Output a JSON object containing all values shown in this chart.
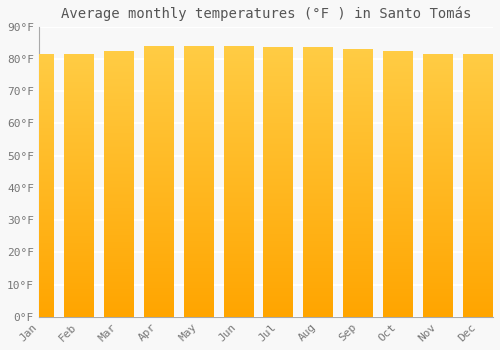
{
  "title": "Average monthly temperatures (°F ) in Santo Tomás",
  "months": [
    "Jan",
    "Feb",
    "Mar",
    "Apr",
    "May",
    "Jun",
    "Jul",
    "Aug",
    "Sep",
    "Oct",
    "Nov",
    "Dec"
  ],
  "values": [
    81.5,
    81.5,
    82.5,
    84.0,
    84.0,
    84.0,
    83.5,
    83.5,
    83.0,
    82.5,
    81.5,
    81.5
  ],
  "bar_color_light": "#FFCC44",
  "bar_color_dark": "#FFA500",
  "background_color": "#f8f8f8",
  "plot_bg_color": "#f8f8f8",
  "grid_color": "#ffffff",
  "ytick_labels": [
    "0°F",
    "10°F",
    "20°F",
    "30°F",
    "40°F",
    "50°F",
    "60°F",
    "70°F",
    "80°F",
    "90°F"
  ],
  "ytick_values": [
    0,
    10,
    20,
    30,
    40,
    50,
    60,
    70,
    80,
    90
  ],
  "ylim": [
    0,
    90
  ],
  "title_fontsize": 10,
  "tick_fontsize": 8,
  "bar_width": 0.75,
  "spine_color": "#aaaaaa",
  "tick_color": "#777777"
}
